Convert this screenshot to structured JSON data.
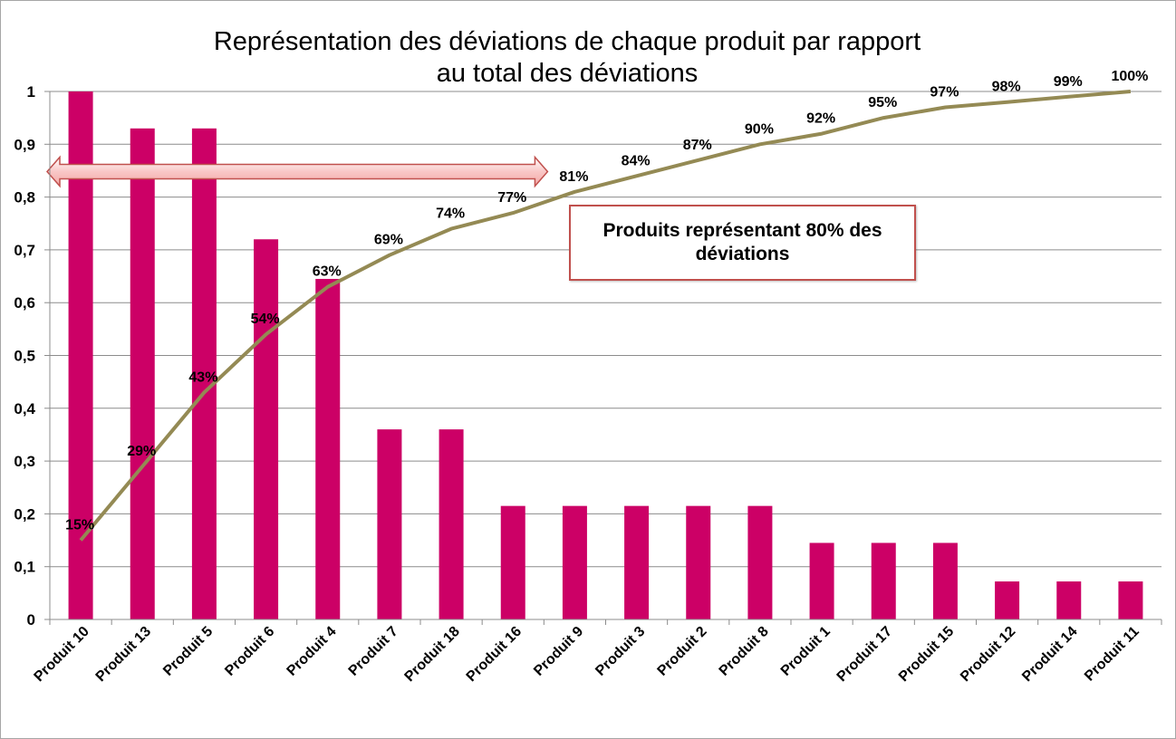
{
  "chart_data": {
    "type": "bar",
    "title": "Représentation des déviations de chaque produit par rapport au total des déviations",
    "title_lines": [
      "Représentation des déviations de chaque produit par rapport",
      "au total des déviations"
    ],
    "categories": [
      "Produit 10",
      "Produit 13",
      "Produit 5",
      "Produit 6",
      "Produit 4",
      "Produit 7",
      "Produit 18",
      "Produit 16",
      "Produit 9",
      "Produit 3",
      "Produit 2",
      "Produit 8",
      "Produit 1",
      "Produit 17",
      "Produit 15",
      "Produit 12",
      "Produit 14",
      "Produit 11"
    ],
    "series": [
      {
        "type": "bar",
        "color": "#cc0066",
        "values": [
          1.0,
          0.93,
          0.93,
          0.72,
          0.645,
          0.36,
          0.36,
          0.215,
          0.215,
          0.215,
          0.215,
          0.215,
          0.145,
          0.145,
          0.145,
          0.072,
          0.072,
          0.072
        ]
      },
      {
        "type": "line",
        "color": "#948a54",
        "values": [
          0.15,
          0.29,
          0.43,
          0.54,
          0.63,
          0.69,
          0.74,
          0.77,
          0.81,
          0.84,
          0.87,
          0.9,
          0.92,
          0.95,
          0.97,
          0.98,
          0.99,
          1.0
        ],
        "data_labels": [
          "15%",
          "29%",
          "43%",
          "54%",
          "63%",
          "69%",
          "74%",
          "77%",
          "81%",
          "84%",
          "87%",
          "90%",
          "92%",
          "95%",
          "97%",
          "98%",
          "99%",
          "100%"
        ]
      }
    ],
    "yticks": [
      "0",
      "0,1",
      "0,2",
      "0,3",
      "0,4",
      "0,5",
      "0,6",
      "0,7",
      "0,8",
      "0,9",
      "1"
    ],
    "ylim": [
      0,
      1
    ],
    "grid": true,
    "legend": "none",
    "annotations": {
      "callout_text": "Produits représentant 80% des déviations",
      "arrow_range": [
        "Produit 10",
        "Produit 9"
      ],
      "arrow_level": 0.85
    }
  }
}
